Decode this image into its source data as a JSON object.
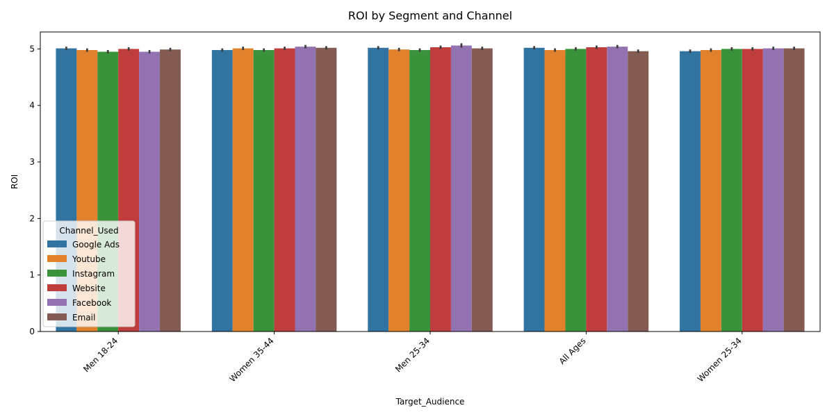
{
  "chart_data": {
    "type": "bar",
    "title": "ROI by Segment and Channel",
    "xlabel": "Target_Audience",
    "ylabel": "ROI",
    "ylim": [
      0,
      5.3
    ],
    "yticks": [
      0,
      1,
      2,
      3,
      4,
      5
    ],
    "grid": false,
    "legend_position": "lower-left",
    "legend_title": "Channel_Used",
    "categories": [
      "Men 18-24",
      "Women 35-44",
      "Men 25-34",
      "All Ages",
      "Women 25-34"
    ],
    "series": [
      {
        "name": "Google Ads",
        "color": "#3274a1",
        "values": [
          5.01,
          4.98,
          5.02,
          5.02,
          4.96
        ],
        "errors": [
          0.03,
          0.03,
          0.03,
          0.03,
          0.03
        ]
      },
      {
        "name": "Youtube",
        "color": "#e1812c",
        "values": [
          4.98,
          5.01,
          4.99,
          4.98,
          4.98
        ],
        "errors": [
          0.03,
          0.03,
          0.03,
          0.03,
          0.03
        ]
      },
      {
        "name": "Instagram",
        "color": "#3a923a",
        "values": [
          4.95,
          4.98,
          4.98,
          5.0,
          5.0
        ],
        "errors": [
          0.03,
          0.03,
          0.03,
          0.03,
          0.03
        ]
      },
      {
        "name": "Website",
        "color": "#c03d3e",
        "values": [
          5.0,
          5.01,
          5.03,
          5.03,
          5.0
        ],
        "errors": [
          0.03,
          0.03,
          0.03,
          0.03,
          0.03
        ]
      },
      {
        "name": "Facebook",
        "color": "#9372b2",
        "values": [
          4.95,
          5.04,
          5.06,
          5.04,
          5.01
        ],
        "errors": [
          0.03,
          0.03,
          0.04,
          0.03,
          0.03
        ]
      },
      {
        "name": "Email",
        "color": "#845b53",
        "values": [
          4.99,
          5.02,
          5.01,
          4.96,
          5.01
        ],
        "errors": [
          0.03,
          0.03,
          0.03,
          0.03,
          0.03
        ]
      }
    ]
  }
}
